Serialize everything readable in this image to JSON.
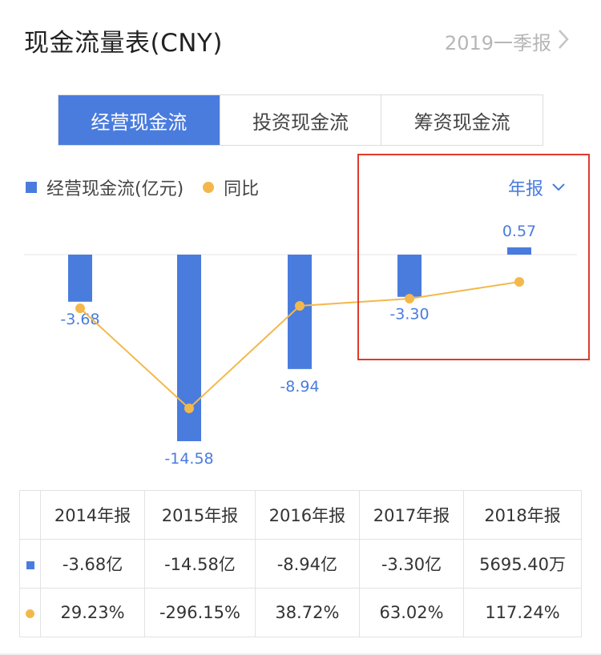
{
  "header": {
    "title": "现金流量表(CNY)",
    "period": "2019一季报"
  },
  "tabs": [
    {
      "label": "经营现金流",
      "active": true
    },
    {
      "label": "投资现金流",
      "active": false
    },
    {
      "label": "筹资现金流",
      "active": false
    }
  ],
  "legend": {
    "bar_label": "经营现金流(亿元)",
    "line_label": "同比"
  },
  "report_select": "年报",
  "colors": {
    "bar": "#4a7cde",
    "line": "#f3b84c",
    "positive": "#c0392b",
    "negative": "#2e9e44",
    "highlight": "#e0392b"
  },
  "chart_data": {
    "type": "bar",
    "categories": [
      "2014年报",
      "2015年报",
      "2016年报",
      "2017年报",
      "2018年报"
    ],
    "series": [
      {
        "name": "经营现金流(亿元)",
        "type": "bar",
        "values": [
          -3.68,
          -14.58,
          -8.94,
          -3.3,
          0.57
        ]
      },
      {
        "name": "同比",
        "type": "line",
        "values": [
          29.23,
          -296.15,
          38.72,
          63.02,
          117.24
        ]
      }
    ],
    "data_labels": [
      "-3.68",
      "-14.58",
      "-8.94",
      "-3.30",
      "0.57"
    ]
  },
  "table": {
    "columns": [
      "2014年报",
      "2015年报",
      "2016年报",
      "2017年报",
      "2018年报"
    ],
    "bar_row": [
      "-3.68亿",
      "-14.58亿",
      "-8.94亿",
      "-3.30亿",
      "5695.40万"
    ],
    "line_row": [
      "29.23%",
      "-296.15%",
      "38.72%",
      "63.02%",
      "117.24%"
    ]
  }
}
